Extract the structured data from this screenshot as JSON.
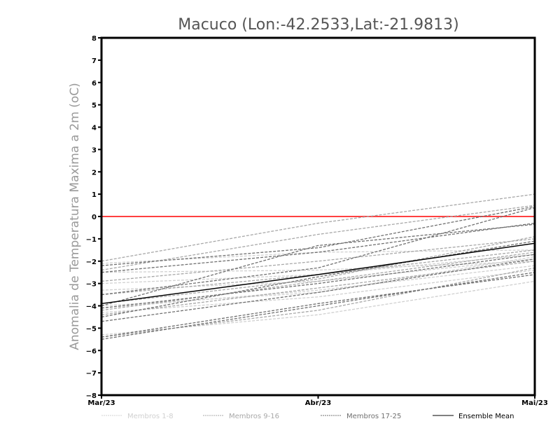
{
  "chart_data": {
    "type": "line",
    "title": "Macuco (Lon:-42.2533,Lat:-21.9813)",
    "xlabel": "",
    "ylabel": "Anomalia de Temperatura Maxima a 2m (oC)",
    "categories": [
      "Mar/23",
      "Abr/23",
      "Mai/23"
    ],
    "ylim": [
      -8,
      8
    ],
    "yticks": [
      -8,
      -7,
      -6,
      -5,
      -4,
      -3,
      -2,
      -1,
      0,
      1,
      2,
      3,
      4,
      5,
      6,
      7,
      8
    ],
    "reference_line": {
      "value": 0,
      "color": "#ff4040"
    },
    "legend": {
      "placement": "bottom",
      "entries": [
        "Membros 1-8",
        "Membros 9-16",
        "Membros 17-25",
        "Ensemble Mean"
      ]
    },
    "groups": [
      {
        "name": "Membros 1-8",
        "color": "#d0d0d0",
        "series": [
          [
            -2.1,
            -1.6,
            -1.5
          ],
          [
            -2.5,
            -2.4,
            -2.0
          ],
          [
            -3.3,
            -2.9,
            -1.9
          ],
          [
            -4.1,
            -3.3,
            -2.2
          ],
          [
            -4.3,
            -3.6,
            -2.4
          ],
          [
            -5.3,
            -4.4,
            -2.9
          ],
          [
            -3.0,
            -2.6,
            -1.7
          ],
          [
            -4.0,
            -3.4,
            -1.8
          ]
        ]
      },
      {
        "name": "Membros 9-16",
        "color": "#a8a8a8",
        "series": [
          [
            -2.0,
            -0.3,
            1.0
          ],
          [
            -2.4,
            -0.8,
            0.5
          ],
          [
            -2.9,
            -2.0,
            -1.0
          ],
          [
            -3.5,
            -2.6,
            -1.5
          ],
          [
            -4.2,
            -2.9,
            -1.6
          ],
          [
            -5.4,
            -4.2,
            -2.3
          ],
          [
            -4.4,
            -3.2,
            -2.0
          ],
          [
            -3.9,
            -2.8,
            -0.9
          ]
        ]
      },
      {
        "name": "Membros 17-25",
        "color": "#707070",
        "series": [
          [
            -2.2,
            -1.4,
            0.45
          ],
          [
            -2.5,
            -1.6,
            -0.3
          ],
          [
            -3.5,
            -2.3,
            0.4
          ],
          [
            -4.0,
            -1.3,
            -0.35
          ],
          [
            -4.5,
            -2.7,
            -1.1
          ],
          [
            -4.7,
            -3.4,
            -1.9
          ],
          [
            -5.5,
            -4.0,
            -2.5
          ],
          [
            -4.1,
            -3.0,
            -1.7
          ],
          [
            -5.4,
            -3.9,
            -2.6
          ]
        ]
      }
    ],
    "ensemble_mean": {
      "name": "Ensemble Mean",
      "color": "#000000",
      "values": [
        -3.9,
        -2.6,
        -1.2
      ]
    }
  }
}
